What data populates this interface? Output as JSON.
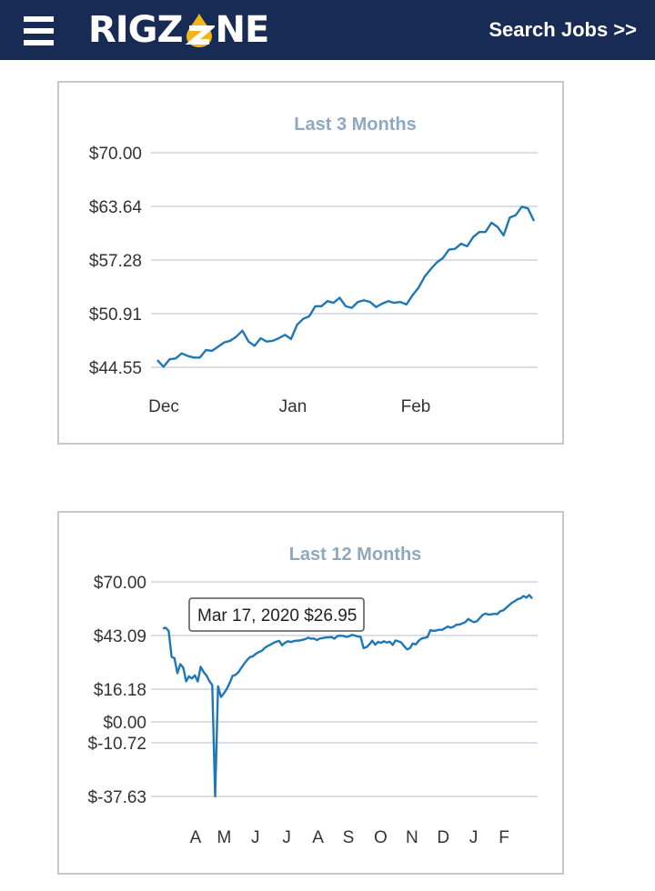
{
  "header": {
    "logo_text_left": "RIGZ",
    "logo_text_right": "NE",
    "search_jobs_label": "Search Jobs >>"
  },
  "colors": {
    "header_bg": "#182b55",
    "logo_drop": "#f2b51c",
    "series": "#1f78b4",
    "title": "#8fa8c2"
  },
  "icons": [
    "menu-icon",
    "oil-drop-icon"
  ],
  "chart_data": [
    {
      "type": "line",
      "title": "Last 3 Months",
      "xlabel": "",
      "ylabel": "",
      "yticks": [
        "$70.00",
        "$63.64",
        "$57.28",
        "$50.91",
        "$44.55"
      ],
      "ytick_values": [
        70.0,
        63.64,
        57.28,
        50.91,
        44.55
      ],
      "xticks": [
        "Dec",
        "Jan",
        "Feb"
      ],
      "xtick_positions": [
        0,
        31,
        62
      ],
      "ylim": [
        44.55,
        70.0
      ],
      "grid": true,
      "series": [
        {
          "values": [
            45.4,
            44.6,
            45.5,
            45.6,
            46.2,
            45.9,
            45.7,
            45.7,
            46.6,
            46.5,
            47.0,
            47.5,
            47.7,
            48.2,
            48.9,
            47.6,
            47.1,
            48.0,
            47.6,
            47.7,
            48.0,
            48.4,
            47.9,
            49.6,
            50.3,
            50.6,
            51.8,
            51.8,
            52.4,
            52.2,
            52.8,
            51.8,
            51.6,
            52.3,
            52.5,
            52.3,
            51.7,
            52.1,
            52.4,
            52.2,
            52.3,
            52.0,
            53.1,
            54.0,
            55.3,
            56.2,
            57.0,
            57.5,
            58.5,
            58.6,
            59.2,
            58.9,
            60.0,
            60.6,
            60.6,
            61.7,
            61.2,
            60.2,
            62.3,
            62.6,
            63.6,
            63.4,
            61.9
          ]
        }
      ]
    },
    {
      "type": "line",
      "title": "Last 12 Months",
      "xlabel": "",
      "ylabel": "",
      "yticks": [
        "$70.00",
        "$43.09",
        "$16.18",
        "$0.00",
        "$-10.72",
        "$-37.63"
      ],
      "ytick_values": [
        70.0,
        43.09,
        16.18,
        0.0,
        -10.72,
        -37.63
      ],
      "xticks": [
        "A",
        "M",
        "J",
        "J",
        "A",
        "S",
        "O",
        "N",
        "D",
        "J",
        "F"
      ],
      "xtick_positions": [
        0,
        9.3,
        19.5,
        29.7,
        39.9,
        49.8,
        60.3,
        70.5,
        80.7,
        90.6,
        100.5
      ],
      "ylim": [
        -37.63,
        70.0
      ],
      "grid": true,
      "tooltip": "Mar 17, 2020 $26.95",
      "series": [
        {
          "values": [
            46.7,
            46.9,
            45.4,
            32.4,
            31.7,
            24.2,
            28.7,
            27.0,
            20.1,
            22.6,
            21.5,
            23.1,
            20.0,
            27.4,
            24.8,
            23.0,
            20.3,
            18.3,
            -37.6,
            17.6,
            12.3,
            14.1,
            16.3,
            19.3,
            22.9,
            23.4,
            24.7,
            26.9,
            29.0,
            30.8,
            32.3,
            32.7,
            33.9,
            34.8,
            35.4,
            36.8,
            37.8,
            38.5,
            39.4,
            40.0,
            40.4,
            38.2,
            39.5,
            40.2,
            39.8,
            40.3,
            40.5,
            40.6,
            40.9,
            41.3,
            42.0,
            41.5,
            41.6,
            40.8,
            41.6,
            41.8,
            42.1,
            42.2,
            42.3,
            41.5,
            42.8,
            43.0,
            42.9,
            42.4,
            42.7,
            43.4,
            43.1,
            42.6,
            42.5,
            36.8,
            37.2,
            38.6,
            40.5,
            38.5,
            39.9,
            39.4,
            40.2,
            39.6,
            40.0,
            38.4,
            40.6,
            40.2,
            39.6,
            37.7,
            36.1,
            36.8,
            39.1,
            38.6,
            40.5,
            41.6,
            41.9,
            42.3,
            45.8,
            45.4,
            45.6,
            46.0,
            45.9,
            46.8,
            47.6,
            47.0,
            47.5,
            48.6,
            48.5,
            49.2,
            49.8,
            51.4,
            50.5,
            49.8,
            50.3,
            51.9,
            53.5,
            54.1,
            53.6,
            53.7,
            54.0,
            53.8,
            55.2,
            55.7,
            56.9,
            58.2,
            59.5,
            60.3,
            61.4,
            61.7,
            62.9,
            62.1,
            63.4,
            61.6
          ]
        }
      ]
    }
  ]
}
